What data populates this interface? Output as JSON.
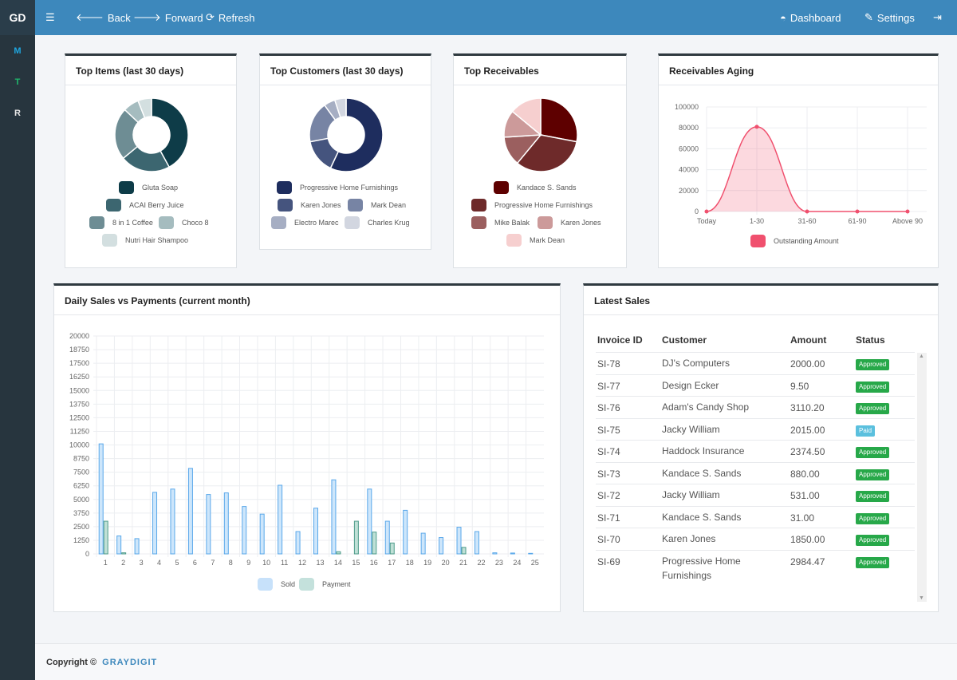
{
  "brand": "GD",
  "toolbar": {
    "back": "Back",
    "forward": "Forward",
    "refresh": "Refresh",
    "dashboard": "Dashboard",
    "settings": "Settings"
  },
  "sidebar": [
    "M",
    "T",
    "R"
  ],
  "cards": {
    "top_items": {
      "title": "Top Items (last 30 days)",
      "slices": [
        {
          "label": "Gluta Soap",
          "value": 42,
          "color": "#0e3c48"
        },
        {
          "label": "ACAI Berry Juice",
          "value": 22,
          "color": "#3c6670"
        },
        {
          "label": "8 in 1 Coffee",
          "value": 23,
          "color": "#6e8d94"
        },
        {
          "label": "Choco 8",
          "value": 7,
          "color": "#a5bcbf"
        },
        {
          "label": "Nutri Hair Shampoo",
          "value": 6,
          "color": "#d3dfe0"
        }
      ]
    },
    "top_customers": {
      "title": "Top Customers (last 30 days)",
      "slices": [
        {
          "label": "Progressive Home Furnishings",
          "value": 57,
          "color": "#1e2d5e"
        },
        {
          "label": "Karen Jones",
          "value": 15,
          "color": "#45547e"
        },
        {
          "label": "Mark Dean",
          "value": 18,
          "color": "#7784a4"
        },
        {
          "label": "Electro Marec",
          "value": 5,
          "color": "#a6aec3"
        },
        {
          "label": "Charles Krug",
          "value": 5,
          "color": "#d2d6e0"
        }
      ]
    },
    "top_receivables": {
      "title": "Top Receivables",
      "slices": [
        {
          "label": "Kandace S. Sands",
          "value": 28,
          "color": "#5e0000"
        },
        {
          "label": "Progressive Home Furnishings",
          "value": 33,
          "color": "#6e2a2a"
        },
        {
          "label": "Mike Balak",
          "value": 13,
          "color": "#9b5f5f"
        },
        {
          "label": "Karen Jones",
          "value": 12,
          "color": "#cc9a9a"
        },
        {
          "label": "Mark Dean",
          "value": 14,
          "color": "#f6cfcf"
        }
      ]
    },
    "aging": {
      "title": "Receivables Aging"
    },
    "daily": {
      "title": "Daily Sales vs Payments (current month)"
    },
    "latest": {
      "title": "Latest Sales"
    }
  },
  "chart_data": [
    {
      "type": "area",
      "title": "Receivables Aging",
      "categories": [
        "Today",
        "1-30",
        "31-60",
        "61-90",
        "Above 90"
      ],
      "series": [
        {
          "name": "Outstanding Amount",
          "values": [
            0,
            81000,
            0,
            0,
            0
          ]
        }
      ],
      "ylim": [
        0,
        100000
      ],
      "yticks": [
        0,
        20000,
        40000,
        60000,
        80000,
        100000
      ],
      "color": "#f0506e"
    },
    {
      "type": "bar",
      "title": "Daily Sales vs Payments (current month)",
      "categories": [
        "1",
        "2",
        "3",
        "4",
        "5",
        "6",
        "7",
        "8",
        "9",
        "10",
        "11",
        "12",
        "13",
        "14",
        "15",
        "16",
        "17",
        "18",
        "19",
        "20",
        "21",
        "22",
        "23",
        "24",
        "25"
      ],
      "series": [
        {
          "name": "Sold",
          "color": "#5aa8ea",
          "values": [
            10100,
            1650,
            1400,
            5650,
            5950,
            7850,
            5450,
            5600,
            4350,
            3650,
            6300,
            2050,
            4200,
            6800,
            0,
            5950,
            3000,
            4000,
            1900,
            1500,
            2450,
            2050,
            100,
            80,
            50
          ]
        },
        {
          "name": "Payment",
          "color": "#4e9b8a",
          "values": [
            3000,
            100,
            0,
            0,
            0,
            0,
            0,
            0,
            0,
            0,
            0,
            0,
            0,
            200,
            3000,
            2000,
            1000,
            0,
            0,
            0,
            600,
            0,
            0,
            0,
            0
          ]
        }
      ],
      "ylim": [
        0,
        20000
      ],
      "yticks": [
        0,
        1250,
        2500,
        3750,
        5000,
        6250,
        7500,
        8750,
        10000,
        11250,
        12500,
        13750,
        15000,
        16250,
        17500,
        18750,
        20000
      ]
    }
  ],
  "latest_sales": {
    "headers": [
      "Invoice ID",
      "Customer",
      "Amount",
      "Status"
    ],
    "rows": [
      {
        "id": "SI-78",
        "customer": "DJ's Computers",
        "amount": "2000.00",
        "status": "Approved"
      },
      {
        "id": "SI-77",
        "customer": "Design Ecker",
        "amount": "9.50",
        "status": "Approved"
      },
      {
        "id": "SI-76",
        "customer": "Adam's Candy Shop",
        "amount": "3110.20",
        "status": "Approved"
      },
      {
        "id": "SI-75",
        "customer": "Jacky William",
        "amount": "2015.00",
        "status": "Paid"
      },
      {
        "id": "SI-74",
        "customer": "Haddock Insurance",
        "amount": "2374.50",
        "status": "Approved"
      },
      {
        "id": "SI-73",
        "customer": "Kandace S. Sands",
        "amount": "880.00",
        "status": "Approved"
      },
      {
        "id": "SI-72",
        "customer": "Jacky William",
        "amount": "531.00",
        "status": "Approved"
      },
      {
        "id": "SI-71",
        "customer": "Kandace S. Sands",
        "amount": "31.00",
        "status": "Approved"
      },
      {
        "id": "SI-70",
        "customer": "Karen Jones",
        "amount": "1850.00",
        "status": "Approved"
      },
      {
        "id": "SI-69",
        "customer": "Progressive Home Furnishings",
        "amount": "2984.47",
        "status": "Approved"
      }
    ]
  },
  "footer": {
    "copyright": "Copyright ©",
    "company": "GRAYDIGIT"
  }
}
